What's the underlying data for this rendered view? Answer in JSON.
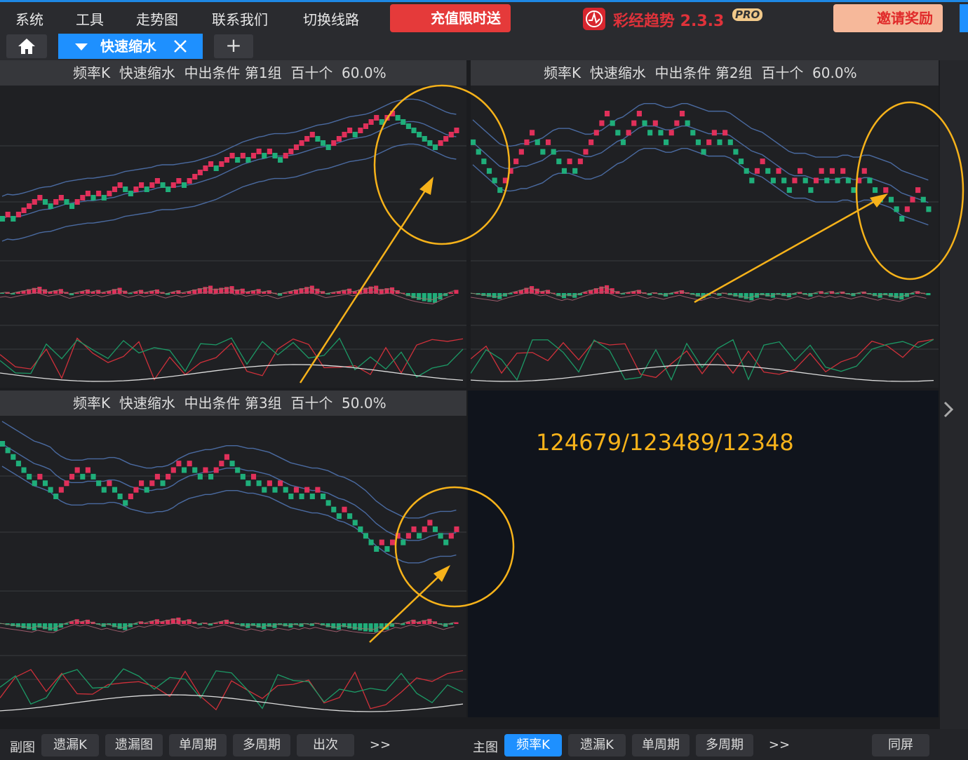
{
  "menu": {
    "items": [
      "系统",
      "工具",
      "走势图",
      "联系我们",
      "切换线路"
    ],
    "promo": "充值限时送",
    "brand": "彩经趋势 2.3.3",
    "badge": "PRO",
    "invite": "邀请奖励"
  },
  "tabs": {
    "active": "快速缩水"
  },
  "panels": [
    {
      "title": "频率K  快速缩水  中出条件 第1组  百十个  60.0%"
    },
    {
      "title": "频率K  快速缩水  中出条件 第2组  百十个  60.0%"
    },
    {
      "title": "频率K  快速缩水  中出条件 第3组  百十个  50.0%"
    }
  ],
  "annotation": "124679/123489/12348",
  "bottom_left": {
    "label": "副图",
    "buttons": [
      "遗漏K",
      "遗漏图",
      "单周期",
      "多周期",
      "出次",
      ">>"
    ]
  },
  "bottom_right": {
    "label": "主图",
    "buttons": [
      "频率K",
      "遗漏K",
      "单周期",
      "多周期",
      ">>"
    ],
    "screen": "同屏"
  }
}
